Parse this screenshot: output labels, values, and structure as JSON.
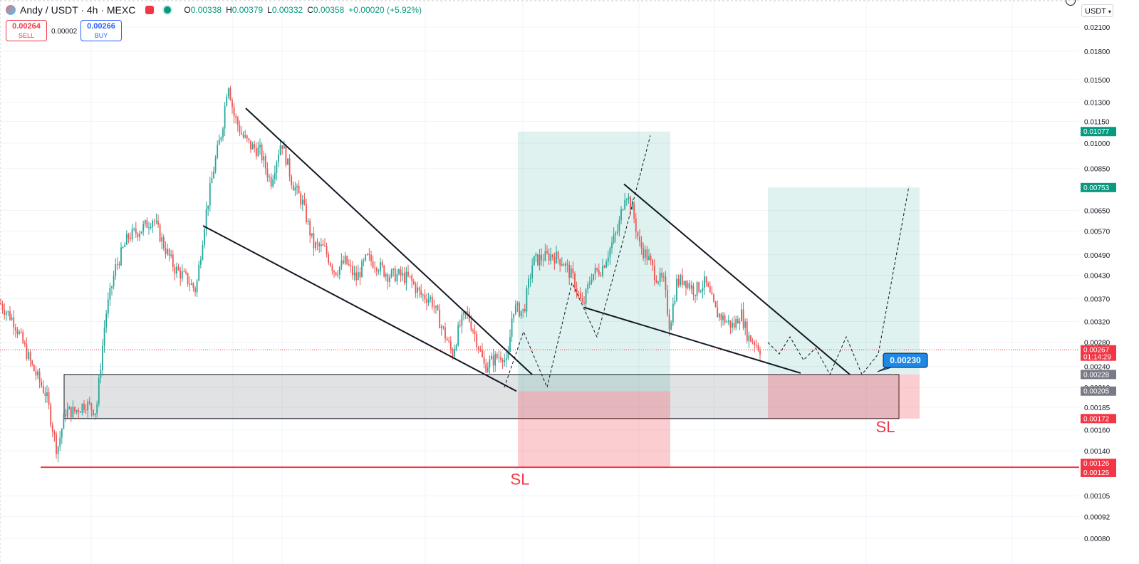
{
  "header": {
    "symbol": "Andy / USDT · 4h · MEXC",
    "ohlc": {
      "o_label": "O",
      "o": "0.00338",
      "h_label": "H",
      "h": "0.00379",
      "l_label": "L",
      "l": "0.00332",
      "c_label": "C",
      "c": "0.00358",
      "change": "+0.00020 (+5.92%)"
    }
  },
  "trade": {
    "sell_price": "0.00264",
    "sell_label": "SELL",
    "spread": "0.00002",
    "buy_price": "0.00266",
    "buy_label": "BUY"
  },
  "currency": "USDT",
  "colors": {
    "up": "#089981",
    "down": "#f23645",
    "accent": "#2962ff"
  },
  "chart_data": {
    "type": "candlestick",
    "scale": "log",
    "ylim": [
      0.00075,
      0.0225
    ],
    "yticks": [
      0.021,
      0.018,
      0.015,
      0.013,
      0.0115,
      0.01,
      0.0085,
      0.0065,
      0.0057,
      0.0049,
      0.0043,
      0.0037,
      0.0032,
      0.0028,
      0.0024,
      0.0021,
      0.00185,
      0.0016,
      0.0014,
      0.00105,
      0.00092,
      0.0008
    ],
    "ytick_labels": [
      "0.02100",
      "0.01800",
      "0.01500",
      "0.01300",
      "0.01150",
      "0.01000",
      "0.00850",
      "0.00650",
      "0.00570",
      "0.00490",
      "0.00430",
      "0.00370",
      "0.00320",
      "0.00280",
      "0.00240",
      "0.00210",
      "0.00185",
      "0.00160",
      "0.00140",
      "0.00105",
      "0.00092",
      "0.00080"
    ],
    "price_path": [
      [
        0,
        0.0036
      ],
      [
        20,
        0.0032
      ],
      [
        45,
        0.0024
      ],
      [
        65,
        0.002
      ],
      [
        80,
        0.0014
      ],
      [
        92,
        0.0018
      ],
      [
        105,
        0.0018
      ],
      [
        120,
        0.0019
      ],
      [
        135,
        0.0018
      ],
      [
        148,
        0.0033
      ],
      [
        162,
        0.0045
      ],
      [
        180,
        0.0055
      ],
      [
        200,
        0.0058
      ],
      [
        215,
        0.0062
      ],
      [
        230,
        0.0052
      ],
      [
        245,
        0.0045
      ],
      [
        262,
        0.0042
      ],
      [
        275,
        0.0039
      ],
      [
        288,
        0.0062
      ],
      [
        300,
        0.0085
      ],
      [
        312,
        0.011
      ],
      [
        320,
        0.015
      ],
      [
        328,
        0.012
      ],
      [
        340,
        0.0105
      ],
      [
        352,
        0.0098
      ],
      [
        365,
        0.0095
      ],
      [
        380,
        0.0078
      ],
      [
        395,
        0.0102
      ],
      [
        410,
        0.0078
      ],
      [
        425,
        0.0068
      ],
      [
        440,
        0.0052
      ],
      [
        455,
        0.0051
      ],
      [
        470,
        0.0044
      ],
      [
        485,
        0.0047
      ],
      [
        500,
        0.0042
      ],
      [
        515,
        0.0048
      ],
      [
        530,
        0.0046
      ],
      [
        545,
        0.0043
      ],
      [
        560,
        0.0043
      ],
      [
        575,
        0.0042
      ],
      [
        590,
        0.0038
      ],
      [
        605,
        0.0037
      ],
      [
        620,
        0.0031
      ],
      [
        635,
        0.0026
      ],
      [
        645,
        0.0031
      ],
      [
        655,
        0.0034
      ],
      [
        668,
        0.0029
      ],
      [
        680,
        0.0024
      ],
      [
        692,
        0.0025
      ],
      [
        705,
        0.0026
      ],
      [
        712,
        0.0024
      ],
      [
        720,
        0.0035
      ],
      [
        735,
        0.0034
      ],
      [
        748,
        0.0047
      ],
      [
        760,
        0.0048
      ],
      [
        775,
        0.0049
      ],
      [
        790,
        0.0047
      ],
      [
        805,
        0.0042
      ],
      [
        818,
        0.0035
      ],
      [
        830,
        0.0043
      ],
      [
        845,
        0.0045
      ],
      [
        858,
        0.0052
      ],
      [
        868,
        0.0058
      ],
      [
        878,
        0.0074
      ],
      [
        888,
        0.0065
      ],
      [
        898,
        0.0052
      ],
      [
        910,
        0.0048
      ],
      [
        920,
        0.0043
      ],
      [
        932,
        0.0041
      ],
      [
        940,
        0.0031
      ],
      [
        950,
        0.0041
      ],
      [
        960,
        0.0042
      ],
      [
        975,
        0.0039
      ],
      [
        990,
        0.0041
      ],
      [
        1005,
        0.0034
      ],
      [
        1020,
        0.0032
      ],
      [
        1030,
        0.0031
      ],
      [
        1040,
        0.0034
      ],
      [
        1050,
        0.0029
      ],
      [
        1060,
        0.0028
      ],
      [
        1068,
        0.00267
      ]
    ],
    "price_labels": [
      {
        "price": 0.01077,
        "text": "0.01077",
        "color": "#089981"
      },
      {
        "price": 0.00753,
        "text": "0.00753",
        "color": "#089981"
      },
      {
        "price": 0.00267,
        "text": "0.00267",
        "sub": "01:14:29",
        "color": "#f23645"
      },
      {
        "price": 0.00228,
        "text": "0.00228",
        "color": "#787b86"
      },
      {
        "price": 0.00205,
        "text": "0.00205",
        "color": "#787b86"
      },
      {
        "price": 0.00172,
        "text": "0.00172",
        "color": "#f23645"
      },
      {
        "price": 0.00126,
        "text": "0.00126",
        "color": "#f23645"
      },
      {
        "price": 0.00125,
        "text": "0.00125",
        "color": "#f23645"
      }
    ],
    "support_zone": {
      "x_start": 90,
      "x_end": 1262,
      "top": 0.00228,
      "bottom": 0.00172
    },
    "positions": [
      {
        "x_start": 727,
        "x_end": 941,
        "entry": 0.00205,
        "target": 0.01077,
        "stop": 0.00126
      },
      {
        "x_start": 1078,
        "x_end": 1291,
        "entry": 0.00228,
        "target": 0.00753,
        "stop": 0.00172
      }
    ],
    "trendlines": [
      {
        "x1": 345,
        "y1": 0.0125,
        "x2": 747,
        "y2": 0.00228
      },
      {
        "x1": 285,
        "y1": 0.0059,
        "x2": 725,
        "y2": 0.00205
      },
      {
        "x1": 876,
        "y1": 0.0077,
        "x2": 1193,
        "y2": 0.00228
      },
      {
        "x1": 820,
        "y1": 0.0035,
        "x2": 1124,
        "y2": 0.0023
      }
    ],
    "projections": [
      [
        [
          708,
          0.0021
        ],
        [
          735,
          0.003
        ],
        [
          768,
          0.0021
        ],
        [
          803,
          0.0041
        ],
        [
          838,
          0.0029
        ],
        [
          875,
          0.0054
        ],
        [
          913,
          0.0105
        ]
      ],
      [
        [
          1078,
          0.0028
        ],
        [
          1094,
          0.0026
        ],
        [
          1109,
          0.0029
        ],
        [
          1128,
          0.0025
        ],
        [
          1145,
          0.0027
        ],
        [
          1165,
          0.00228
        ],
        [
          1188,
          0.0029
        ],
        [
          1210,
          0.00228
        ],
        [
          1233,
          0.0026
        ],
        [
          1276,
          0.0076
        ]
      ]
    ],
    "stop_line": 0.00126,
    "current_price": 0.00267,
    "sl_labels": [
      {
        "x": 730,
        "price": 0.00118,
        "text": "SL"
      },
      {
        "x": 1243,
        "price": 0.00165,
        "text": "SL"
      }
    ],
    "callout": {
      "text": "0.00230",
      "price": 0.0023
    }
  }
}
